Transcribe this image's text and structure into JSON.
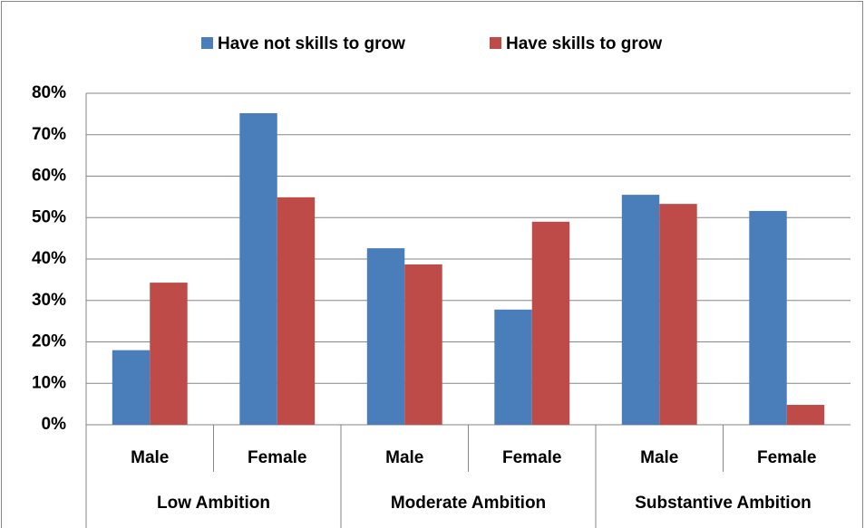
{
  "chart_data": {
    "type": "bar",
    "categories": [
      "Male",
      "Female",
      "Male",
      "Female",
      "Male",
      "Female"
    ],
    "category_groups": [
      "Low Ambition",
      "Moderate Ambition",
      "Substantive Ambition"
    ],
    "series": [
      {
        "name": "Have not skills to grow",
        "color": "#4a7ebb",
        "values": [
          18,
          75.2,
          42.6,
          27.8,
          55.5,
          51.6
        ]
      },
      {
        "name": "Have skills to grow",
        "color": "#be4b48",
        "values": [
          34.3,
          54.9,
          38.7,
          49,
          53.3,
          4.8
        ]
      }
    ],
    "ylim": [
      0,
      80
    ],
    "yticks": [
      {
        "value": 0,
        "label": "0%"
      },
      {
        "value": 10,
        "label": "10%"
      },
      {
        "value": 20,
        "label": "20%"
      },
      {
        "value": 30,
        "label": "30%"
      },
      {
        "value": 40,
        "label": "40%"
      },
      {
        "value": 50,
        "label": "50%"
      },
      {
        "value": 60,
        "label": "60%"
      },
      {
        "value": 70,
        "label": "70%"
      },
      {
        "value": 80,
        "label": "80%"
      }
    ],
    "grid": true,
    "legend": "top"
  }
}
